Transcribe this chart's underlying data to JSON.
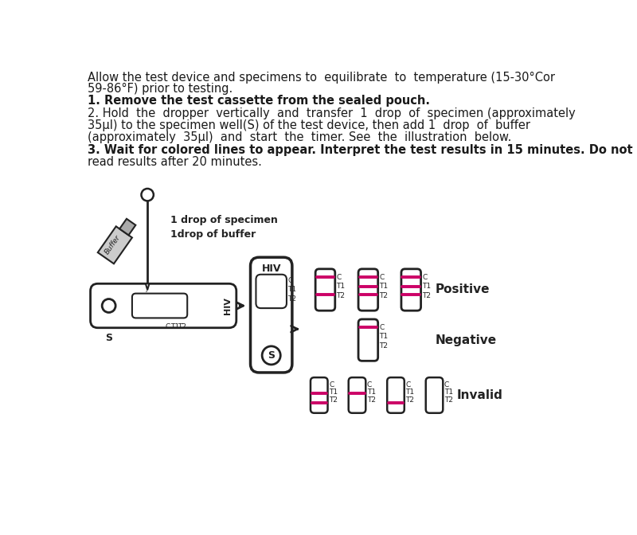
{
  "bg_color": "#ffffff",
  "text_color": "#1a1a1a",
  "line_color": "#222222",
  "pink_color": "#cc0066",
  "gray_color": "#999999",
  "intro_text": [
    "Allow the test device and specimens to  equilibrate  to  temperature (15-30°Cor",
    "59-86°F) prior to testing.",
    "1. Remove the test cassette from the sealed pouch.",
    "2. Hold  the  dropper  vertically  and  transfer  1  drop  of  specimen (approximately",
    "35μl) to the specimen well(S) of the test device, then add 1  drop  of  buffer",
    "(approximately  35μl)  and  start  the  timer. See  the  illustration  below.",
    "3. Wait for colored lines to appear. Interpret the test results in 15 minutes. Do not",
    "read results after 20 minutes."
  ],
  "bold_lines": [
    false,
    false,
    true,
    false,
    false,
    false,
    true,
    false
  ],
  "positive_label": "Positive",
  "negative_label": "Negative",
  "invalid_label": "Invalid",
  "hiv_label": "HIV",
  "s_label": "S",
  "c_label": "C",
  "t1_label": "T1",
  "t2_label": "T2",
  "drop_text_line1": "1 drop of specimen",
  "drop_text_line2": "1drop of buffer",
  "buffer_label": "Buffer"
}
